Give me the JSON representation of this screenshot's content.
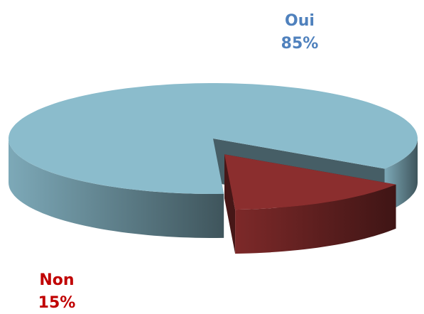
{
  "chart_data": {
    "type": "pie",
    "categories": [
      "Oui",
      "Non"
    ],
    "values": [
      85,
      15
    ],
    "value_labels": [
      "85%",
      "15%"
    ],
    "colors": [
      "#8bbccc",
      "#8b2e2e"
    ],
    "label_colors": [
      "#4f81bd",
      "#c00000"
    ]
  }
}
